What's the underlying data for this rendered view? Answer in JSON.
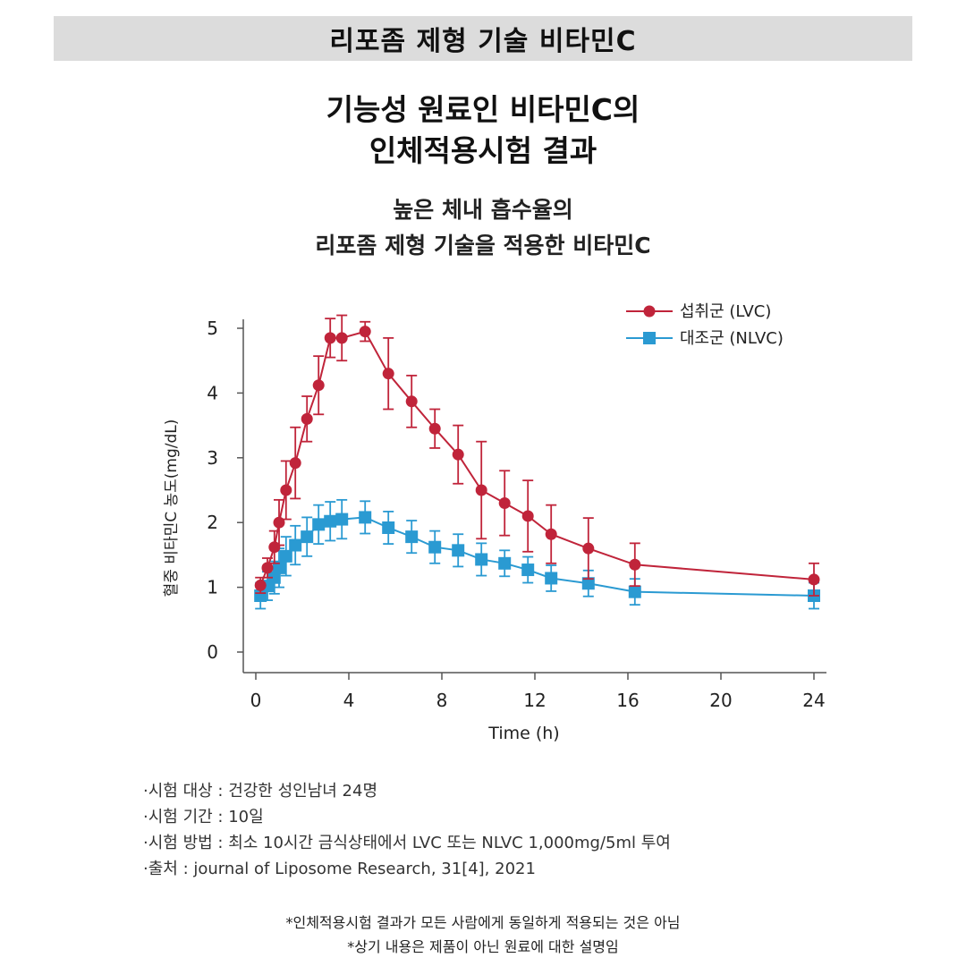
{
  "banner": "리포좀 제형 기술 비타민C",
  "title_lines": [
    "기능성 원료인 비타민C의",
    "인체적용시험 결과"
  ],
  "subtitle_lines": [
    "높은 체내 흡수율의",
    "리포좀 제형 기술을 적용한 비타민C"
  ],
  "chart_data": {
    "type": "line",
    "xlabel": "Time (h)",
    "ylabel": "혈중 비타민C 농도(mg/dL)",
    "xlim": [
      0,
      24
    ],
    "ylim": [
      0,
      5
    ],
    "xticks": [
      0,
      4,
      8,
      12,
      16,
      20,
      24
    ],
    "yticks": [
      0,
      1,
      2,
      3,
      4,
      5
    ],
    "legend_position": "top-right",
    "series": [
      {
        "name": "섭취군 (LVC)",
        "color": "#c0243a",
        "marker": "circle",
        "x": [
          0.2,
          0.5,
          0.8,
          1.0,
          1.3,
          1.7,
          2.2,
          2.7,
          3.2,
          3.7,
          4.7,
          5.7,
          6.7,
          7.7,
          8.7,
          9.7,
          10.7,
          11.7,
          12.7,
          14.3,
          16.3,
          24
        ],
        "y": [
          1.03,
          1.3,
          1.62,
          2.0,
          2.5,
          2.92,
          3.6,
          4.12,
          4.85,
          4.85,
          4.95,
          4.3,
          3.87,
          3.45,
          3.05,
          2.5,
          2.3,
          2.1,
          1.82,
          1.6,
          1.35,
          1.12
        ],
        "error": [
          0.12,
          0.15,
          0.25,
          0.35,
          0.45,
          0.55,
          0.35,
          0.45,
          0.3,
          0.35,
          0.15,
          0.55,
          0.4,
          0.3,
          0.45,
          0.75,
          0.5,
          0.55,
          0.45,
          0.47,
          0.33,
          0.25
        ]
      },
      {
        "name": "대조군 (NLVC)",
        "color": "#2a9ad2",
        "marker": "square",
        "x": [
          0.2,
          0.5,
          0.8,
          1.0,
          1.3,
          1.7,
          2.2,
          2.7,
          3.2,
          3.7,
          4.7,
          5.7,
          6.7,
          7.7,
          8.7,
          9.7,
          10.7,
          11.7,
          12.7,
          14.3,
          16.3,
          24
        ],
        "y": [
          0.87,
          1.02,
          1.15,
          1.3,
          1.48,
          1.65,
          1.78,
          1.97,
          2.02,
          2.05,
          2.08,
          1.92,
          1.78,
          1.62,
          1.57,
          1.43,
          1.37,
          1.27,
          1.14,
          1.06,
          0.93,
          0.87
        ],
        "error": [
          0.2,
          0.22,
          0.25,
          0.3,
          0.3,
          0.3,
          0.3,
          0.3,
          0.3,
          0.3,
          0.25,
          0.25,
          0.25,
          0.25,
          0.25,
          0.25,
          0.2,
          0.2,
          0.2,
          0.2,
          0.2,
          0.2
        ]
      }
    ]
  },
  "notes": [
    "·시험 대상 : 건강한 성인남녀 24명",
    "·시험 기간 : 10일",
    "·시험 방법 : 최소 10시간 금식상태에서 LVC 또는 NLVC 1,000mg/5ml 투여",
    "·출처 : journal of Liposome Research, 31[4], 2021"
  ],
  "disclaimers": [
    "*인체적용시험 결과가 모든 사람에게 동일하게 적용되는 것은 아님",
    "*상기 내용은 제품이 아닌 원료에 대한 설명임"
  ]
}
